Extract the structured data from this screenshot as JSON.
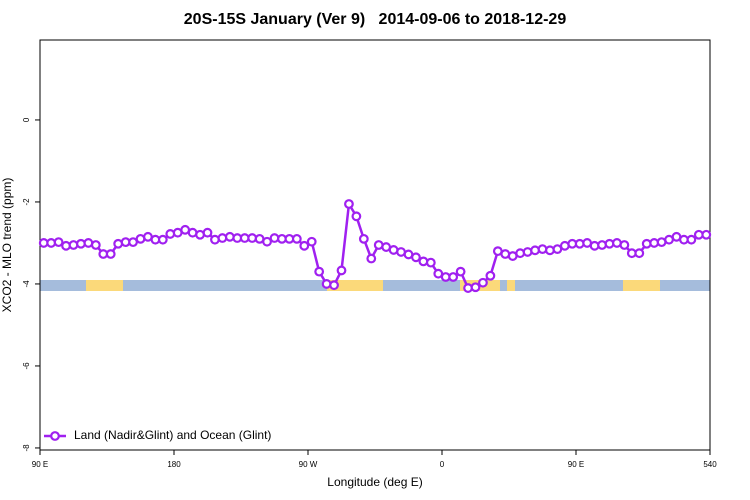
{
  "chart_data": {
    "type": "line",
    "title": "20S-15S January (Ver 9)   2014-09-06 to 2018-12-29",
    "xlabel": "Longitude (deg E)",
    "ylabel": "XCO2 - MLO trend (ppm)",
    "x": [
      92.5,
      97.5,
      102.5,
      107.5,
      112.5,
      117.5,
      122.5,
      127.5,
      132.5,
      137.5,
      142.5,
      147.5,
      152.5,
      157.5,
      162.5,
      167.5,
      172.5,
      177.5,
      182.5,
      187.5,
      192.5,
      197.5,
      202.5,
      207.5,
      212.5,
      217.5,
      222.5,
      227.5,
      232.5,
      237.5,
      242.5,
      247.5,
      252.5,
      257.5,
      262.5,
      267.5,
      272.5,
      277.5,
      282.5,
      287.5,
      292.5,
      297.5,
      302.5,
      307.5,
      312.5,
      317.5,
      322.5,
      327.5,
      332.5,
      337.5,
      342.5,
      347.5,
      352.5,
      357.5,
      362.5,
      367.5,
      372.5,
      377.5,
      382.5,
      387.5,
      392.5,
      397.5,
      402.5,
      407.5,
      412.5,
      417.5,
      422.5,
      427.5,
      432.5,
      437.5,
      442.5,
      447.5,
      452.5,
      457.5,
      462.5,
      467.5,
      472.5,
      477.5,
      482.5,
      487.5,
      492.5,
      497.5,
      502.5,
      507.5,
      512.5,
      517.5,
      522.5,
      527.5,
      532.5,
      537.5
    ],
    "series": [
      {
        "name": "Land (Nadir&Glint) and Ocean (Glint)",
        "color": "#a020f0",
        "values": [
          -3.0,
          -3.0,
          -2.98,
          -3.07,
          -3.05,
          -3.02,
          -3.0,
          -3.05,
          -3.27,
          -3.27,
          -3.02,
          -2.98,
          -2.98,
          -2.9,
          -2.85,
          -2.92,
          -2.92,
          -2.78,
          -2.75,
          -2.68,
          -2.75,
          -2.8,
          -2.75,
          -2.92,
          -2.88,
          -2.85,
          -2.88,
          -2.88,
          -2.88,
          -2.9,
          -2.97,
          -2.88,
          -2.9,
          -2.9,
          -2.9,
          -3.07,
          -2.97,
          -3.7,
          -4.0,
          -4.03,
          -3.67,
          -2.05,
          -2.35,
          -2.9,
          -3.38,
          -3.05,
          -3.1,
          -3.17,
          -3.22,
          -3.28,
          -3.35,
          -3.45,
          -3.48,
          -3.75,
          -3.83,
          -3.83,
          -3.7,
          -4.1,
          -4.08,
          -3.97,
          -3.8,
          -3.2,
          -3.27,
          -3.32,
          -3.25,
          -3.22,
          -3.18,
          -3.15,
          -3.18,
          -3.15,
          -3.07,
          -3.02,
          -3.02,
          -3.0,
          -3.07,
          -3.05,
          -3.02,
          -3.0,
          -3.05,
          -3.25,
          -3.25,
          -3.02,
          -3.0,
          -2.98,
          -2.92,
          -2.85,
          -2.92,
          -2.92,
          -2.8,
          -2.8
        ]
      }
    ],
    "xlim": [
      90,
      540
    ],
    "xticks": [
      {
        "value": 90,
        "label": "90 E"
      },
      180,
      {
        "value": 270,
        "label": "90 W"
      },
      {
        "value": 360,
        "label": "0"
      },
      {
        "value": 450,
        "label": "90 E"
      },
      540
    ],
    "ylim": [
      -8.05,
      1.95
    ],
    "yticks": [
      -8,
      -6,
      -4,
      -2,
      0
    ],
    "legend": "bottom-left"
  }
}
